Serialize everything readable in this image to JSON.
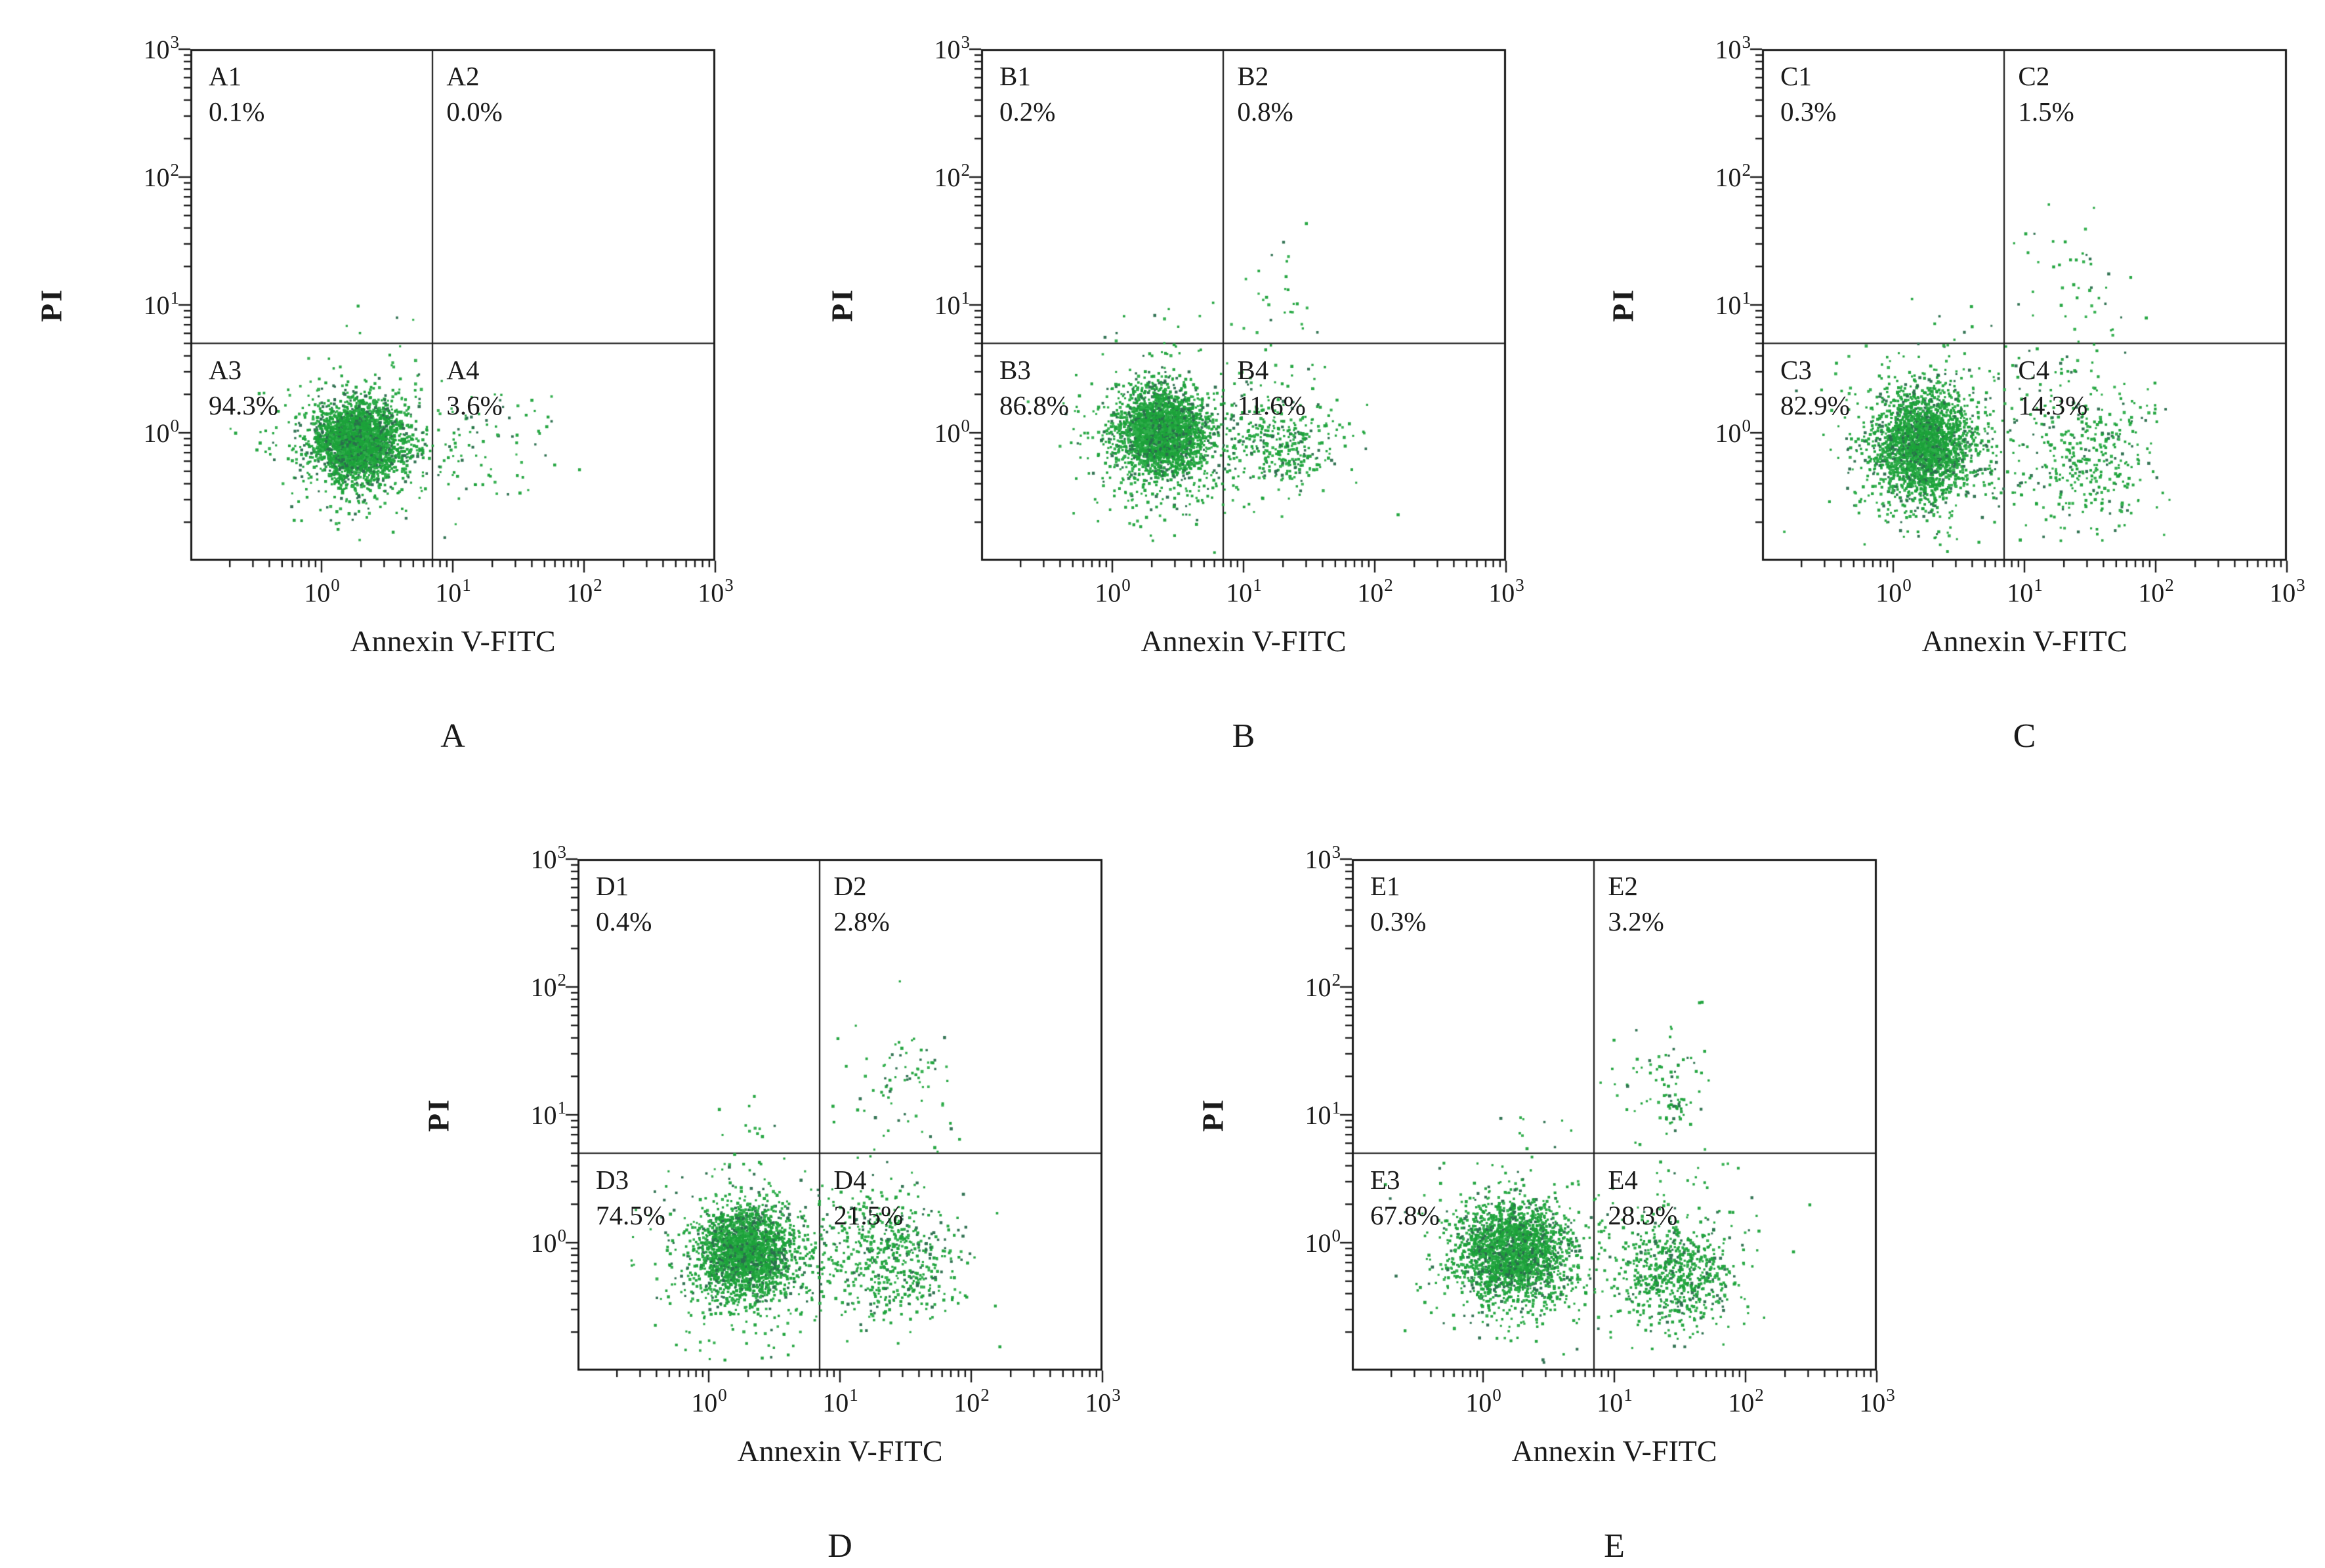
{
  "figure": {
    "description_title": "Annexin V-FITC / PI flow cytometry dot plots",
    "panel_letters": [
      "A",
      "B",
      "C",
      "D",
      "E"
    ]
  },
  "colors": {
    "dot_green": "#1ca23a",
    "dot_green_light": "#2fae4b",
    "dot_green_dark": "#2a6e4d",
    "frame": "#1a1a1a",
    "background": "#ffffff"
  },
  "axes": {
    "x_ticks": [
      {
        "base": "10",
        "exp": "0"
      },
      {
        "base": "10",
        "exp": "1"
      },
      {
        "base": "10",
        "exp": "2"
      },
      {
        "base": "10",
        "exp": "3"
      }
    ],
    "y_ticks": [
      {
        "base": "10",
        "exp": "3"
      },
      {
        "base": "10",
        "exp": "2"
      },
      {
        "base": "10",
        "exp": "1"
      },
      {
        "base": "10",
        "exp": "0"
      }
    ]
  },
  "chart_data": [
    {
      "type": "scatter",
      "panel_letter": "A",
      "xlabel": "Annexin V-FITC",
      "ylabel": "PI",
      "x_scale": "log",
      "y_scale": "log",
      "x_range": [
        0.1,
        1000
      ],
      "y_range": [
        0.1,
        1000
      ],
      "gate_x": 7,
      "gate_y": 5,
      "quadrants": [
        {
          "label": "A1",
          "value": "0.1%"
        },
        {
          "label": "A2",
          "value": "0.0%"
        },
        {
          "label": "A3",
          "value": "94.3%"
        },
        {
          "label": "A4",
          "value": "3.6%"
        }
      ],
      "clusters": [
        {
          "name": "live-core",
          "cx": 1.9,
          "cy": 0.85,
          "sx": 0.15,
          "sy": 0.14,
          "n": 2600
        },
        {
          "name": "live-halo",
          "cx": 1.9,
          "cy": 0.8,
          "sx": 0.3,
          "sy": 0.27,
          "n": 650
        },
        {
          "name": "q4-sparse",
          "cx": 17,
          "cy": 0.75,
          "sx": 0.3,
          "sy": 0.24,
          "n": 85
        },
        {
          "name": "q1-sparse",
          "cx": 2.4,
          "cy": 6.5,
          "sx": 0.16,
          "sy": 0.07,
          "n": 5
        }
      ]
    },
    {
      "type": "scatter",
      "panel_letter": "B",
      "xlabel": "Annexin V-FITC",
      "ylabel": "PI",
      "x_scale": "log",
      "y_scale": "log",
      "x_range": [
        0.1,
        1000
      ],
      "y_range": [
        0.1,
        1000
      ],
      "gate_x": 7,
      "gate_y": 5,
      "quadrants": [
        {
          "label": "B1",
          "value": "0.2%"
        },
        {
          "label": "B2",
          "value": "0.8%"
        },
        {
          "label": "B3",
          "value": "86.8%"
        },
        {
          "label": "B4",
          "value": "11.6%"
        }
      ],
      "clusters": [
        {
          "name": "live-core",
          "cx": 2.4,
          "cy": 1.0,
          "sx": 0.17,
          "sy": 0.16,
          "n": 2300
        },
        {
          "name": "live-halo",
          "cx": 2.4,
          "cy": 0.95,
          "sx": 0.32,
          "sy": 0.3,
          "n": 600
        },
        {
          "name": "q4-cluster",
          "cx": 18,
          "cy": 0.8,
          "sx": 0.22,
          "sy": 0.16,
          "n": 300
        },
        {
          "name": "q4-spread",
          "cx": 25,
          "cy": 0.95,
          "sx": 0.3,
          "sy": 0.3,
          "n": 90
        },
        {
          "name": "q2-sparse",
          "cx": 20,
          "cy": 12,
          "sx": 0.2,
          "sy": 0.26,
          "n": 28
        },
        {
          "name": "q1-sparse",
          "cx": 3,
          "cy": 7,
          "sx": 0.25,
          "sy": 0.12,
          "n": 8
        }
      ]
    },
    {
      "type": "scatter",
      "panel_letter": "C",
      "xlabel": "Annexin V-FITC",
      "ylabel": "PI",
      "x_scale": "log",
      "y_scale": "log",
      "x_range": [
        0.1,
        1000
      ],
      "y_range": [
        0.1,
        1000
      ],
      "gate_x": 7,
      "gate_y": 5,
      "quadrants": [
        {
          "label": "C1",
          "value": "0.3%"
        },
        {
          "label": "C2",
          "value": "1.5%"
        },
        {
          "label": "C3",
          "value": "82.9%"
        },
        {
          "label": "C4",
          "value": "14.3%"
        }
      ],
      "clusters": [
        {
          "name": "live-core",
          "cx": 1.7,
          "cy": 0.8,
          "sx": 0.18,
          "sy": 0.2,
          "n": 2100
        },
        {
          "name": "live-halo",
          "cx": 1.8,
          "cy": 0.75,
          "sx": 0.33,
          "sy": 0.33,
          "n": 600
        },
        {
          "name": "q4-cluster",
          "cx": 30,
          "cy": 0.6,
          "sx": 0.25,
          "sy": 0.28,
          "n": 330
        },
        {
          "name": "q4-spread",
          "cx": 25,
          "cy": 1.3,
          "sx": 0.3,
          "sy": 0.3,
          "n": 80
        },
        {
          "name": "q2-sparse",
          "cx": 25,
          "cy": 13,
          "sx": 0.22,
          "sy": 0.3,
          "n": 42
        },
        {
          "name": "q1-sparse",
          "cx": 2.5,
          "cy": 9,
          "sx": 0.2,
          "sy": 0.15,
          "n": 9
        }
      ]
    },
    {
      "type": "scatter",
      "panel_letter": "D",
      "xlabel": "Annexin V-FITC",
      "ylabel": "PI",
      "x_scale": "log",
      "y_scale": "log",
      "x_range": [
        0.1,
        1000
      ],
      "y_range": [
        0.1,
        1000
      ],
      "gate_x": 7,
      "gate_y": 5,
      "quadrants": [
        {
          "label": "D1",
          "value": "0.4%"
        },
        {
          "label": "D2",
          "value": "2.8%"
        },
        {
          "label": "D3",
          "value": "74.5%"
        },
        {
          "label": "D4",
          "value": "21.5%"
        }
      ],
      "clusters": [
        {
          "name": "live-core",
          "cx": 1.9,
          "cy": 0.85,
          "sx": 0.18,
          "sy": 0.17,
          "n": 2000
        },
        {
          "name": "live-halo",
          "cx": 2.0,
          "cy": 0.8,
          "sx": 0.33,
          "sy": 0.3,
          "n": 550
        },
        {
          "name": "q4-cluster",
          "cx": 25,
          "cy": 0.7,
          "sx": 0.24,
          "sy": 0.22,
          "n": 480
        },
        {
          "name": "q4-spread",
          "cx": 25,
          "cy": 1.3,
          "sx": 0.3,
          "sy": 0.32,
          "n": 100
        },
        {
          "name": "q2-cluster",
          "cx": 35,
          "cy": 20,
          "sx": 0.2,
          "sy": 0.22,
          "n": 60
        },
        {
          "name": "q2-spread",
          "cx": 22,
          "cy": 11,
          "sx": 0.3,
          "sy": 0.3,
          "n": 18
        },
        {
          "name": "q1-sparse",
          "cx": 2.5,
          "cy": 7.5,
          "sx": 0.22,
          "sy": 0.14,
          "n": 12
        },
        {
          "name": "stray",
          "cx": 160,
          "cy": 0.14,
          "sx": 0.02,
          "sy": 0.02,
          "n": 1
        }
      ]
    },
    {
      "type": "scatter",
      "panel_letter": "E",
      "xlabel": "Annexin V-FITC",
      "ylabel": "PI",
      "x_scale": "log",
      "y_scale": "log",
      "x_range": [
        0.1,
        1000
      ],
      "y_range": [
        0.1,
        1000
      ],
      "gate_x": 7,
      "gate_y": 5,
      "quadrants": [
        {
          "label": "E1",
          "value": "0.3%"
        },
        {
          "label": "E2",
          "value": "3.2%"
        },
        {
          "label": "E3",
          "value": "67.8%"
        },
        {
          "label": "E4",
          "value": "28.3%"
        }
      ],
      "clusters": [
        {
          "name": "live-core",
          "cx": 1.7,
          "cy": 0.85,
          "sx": 0.2,
          "sy": 0.18,
          "n": 1900
        },
        {
          "name": "live-halo",
          "cx": 1.8,
          "cy": 0.8,
          "sx": 0.34,
          "sy": 0.3,
          "n": 550
        },
        {
          "name": "q4-cluster",
          "cx": 30,
          "cy": 0.55,
          "sx": 0.22,
          "sy": 0.2,
          "n": 600
        },
        {
          "name": "q4-spread",
          "cx": 28,
          "cy": 1.0,
          "sx": 0.3,
          "sy": 0.33,
          "n": 130
        },
        {
          "name": "q2-sparse",
          "cx": 25,
          "cy": 20,
          "sx": 0.22,
          "sy": 0.22,
          "n": 70
        },
        {
          "name": "q2-blob",
          "cx": 30,
          "cy": 11,
          "sx": 0.06,
          "sy": 0.06,
          "n": 25
        },
        {
          "name": "q1-sparse",
          "cx": 2.2,
          "cy": 8,
          "sx": 0.3,
          "sy": 0.12,
          "n": 8
        }
      ]
    }
  ]
}
